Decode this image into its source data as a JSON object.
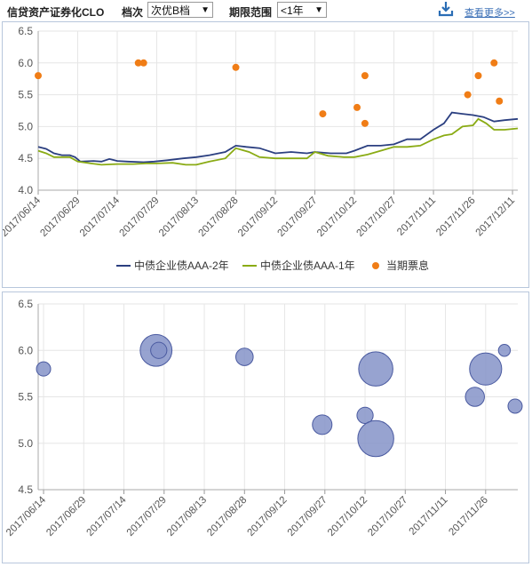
{
  "toolbar": {
    "title": "信贷资产证券化CLO",
    "grade_label": "档次",
    "grade_value": "次优B档",
    "range_label": "期限范围",
    "range_value": "<1年",
    "more_link": "查看更多>>"
  },
  "icons": {
    "download": "download-icon",
    "dropdown": "chevron-down-icon"
  },
  "colors": {
    "aaa2": "#2b3f80",
    "aaa1": "#8aab14",
    "coupon": "#f07d16",
    "bubble": "#8593c8",
    "grid": "#e6e6e6",
    "panel_border": "#b8c7dc"
  },
  "chart_data": [
    {
      "type": "line",
      "ylim": [
        4.0,
        6.5
      ],
      "y_ticks": [
        "4.0",
        "4.5",
        "5.0",
        "5.5",
        "6.0",
        "6.5"
      ],
      "x_ticks": [
        "2017/06/14",
        "2017/06/29",
        "2017/07/14",
        "2017/07/29",
        "2017/08/13",
        "2017/08/28",
        "2017/09/12",
        "2017/09/27",
        "2017/10/12",
        "2017/10/27",
        "2017/11/11",
        "2017/11/26",
        "2017/12/11"
      ],
      "x_range": [
        "2017/06/14",
        "2017/12/13"
      ],
      "legend_position": "bottom",
      "series": [
        {
          "name": "中债企业债AAA-2年",
          "kind": "line",
          "points": [
            [
              "2017/06/14",
              4.68
            ],
            [
              "2017/06/17",
              4.65
            ],
            [
              "2017/06/20",
              4.58
            ],
            [
              "2017/06/23",
              4.55
            ],
            [
              "2017/06/26",
              4.55
            ],
            [
              "2017/06/28",
              4.52
            ],
            [
              "2017/06/30",
              4.45
            ],
            [
              "2017/07/05",
              4.46
            ],
            [
              "2017/07/08",
              4.45
            ],
            [
              "2017/07/11",
              4.49
            ],
            [
              "2017/07/14",
              4.46
            ],
            [
              "2017/07/18",
              4.45
            ],
            [
              "2017/07/24",
              4.44
            ],
            [
              "2017/07/28",
              4.45
            ],
            [
              "2017/08/02",
              4.47
            ],
            [
              "2017/08/08",
              4.5
            ],
            [
              "2017/08/13",
              4.52
            ],
            [
              "2017/08/18",
              4.55
            ],
            [
              "2017/08/24",
              4.6
            ],
            [
              "2017/08/28",
              4.7
            ],
            [
              "2017/09/01",
              4.68
            ],
            [
              "2017/09/06",
              4.66
            ],
            [
              "2017/09/12",
              4.58
            ],
            [
              "2017/09/18",
              4.6
            ],
            [
              "2017/09/24",
              4.58
            ],
            [
              "2017/09/27",
              4.6
            ],
            [
              "2017/10/03",
              4.58
            ],
            [
              "2017/10/09",
              4.58
            ],
            [
              "2017/10/12",
              4.62
            ],
            [
              "2017/10/17",
              4.7
            ],
            [
              "2017/10/22",
              4.7
            ],
            [
              "2017/10/27",
              4.72
            ],
            [
              "2017/11/01",
              4.8
            ],
            [
              "2017/11/06",
              4.8
            ],
            [
              "2017/11/11",
              4.95
            ],
            [
              "2017/11/15",
              5.05
            ],
            [
              "2017/11/18",
              5.22
            ],
            [
              "2017/11/22",
              5.2
            ],
            [
              "2017/11/26",
              5.18
            ],
            [
              "2017/11/30",
              5.15
            ],
            [
              "2017/12/04",
              5.08
            ],
            [
              "2017/12/08",
              5.1
            ],
            [
              "2017/12/13",
              5.12
            ]
          ]
        },
        {
          "name": "中债企业债AAA-1年",
          "kind": "line",
          "points": [
            [
              "2017/06/14",
              4.62
            ],
            [
              "2017/06/17",
              4.58
            ],
            [
              "2017/06/20",
              4.52
            ],
            [
              "2017/06/23",
              4.52
            ],
            [
              "2017/06/26",
              4.52
            ],
            [
              "2017/06/29",
              4.45
            ],
            [
              "2017/07/04",
              4.42
            ],
            [
              "2017/07/08",
              4.4
            ],
            [
              "2017/07/14",
              4.41
            ],
            [
              "2017/07/20",
              4.41
            ],
            [
              "2017/07/25",
              4.42
            ],
            [
              "2017/07/29",
              4.42
            ],
            [
              "2017/08/04",
              4.43
            ],
            [
              "2017/08/09",
              4.4
            ],
            [
              "2017/08/13",
              4.4
            ],
            [
              "2017/08/18",
              4.45
            ],
            [
              "2017/08/24",
              4.5
            ],
            [
              "2017/08/28",
              4.66
            ],
            [
              "2017/09/02",
              4.6
            ],
            [
              "2017/09/06",
              4.52
            ],
            [
              "2017/09/12",
              4.5
            ],
            [
              "2017/09/18",
              4.5
            ],
            [
              "2017/09/24",
              4.5
            ],
            [
              "2017/09/27",
              4.6
            ],
            [
              "2017/10/02",
              4.54
            ],
            [
              "2017/10/08",
              4.52
            ],
            [
              "2017/10/12",
              4.52
            ],
            [
              "2017/10/17",
              4.56
            ],
            [
              "2017/10/22",
              4.62
            ],
            [
              "2017/10/27",
              4.68
            ],
            [
              "2017/11/01",
              4.68
            ],
            [
              "2017/11/06",
              4.7
            ],
            [
              "2017/11/11",
              4.8
            ],
            [
              "2017/11/15",
              4.86
            ],
            [
              "2017/11/18",
              4.88
            ],
            [
              "2017/11/22",
              5.0
            ],
            [
              "2017/11/26",
              5.02
            ],
            [
              "2017/11/28",
              5.12
            ],
            [
              "2017/12/01",
              5.05
            ],
            [
              "2017/12/04",
              4.95
            ],
            [
              "2017/12/08",
              4.95
            ],
            [
              "2017/12/13",
              4.97
            ]
          ]
        },
        {
          "name": "当期票息",
          "kind": "scatter",
          "points": [
            [
              "2017/06/14",
              5.8
            ],
            [
              "2017/07/22",
              6.0
            ],
            [
              "2017/07/24",
              6.0
            ],
            [
              "2017/08/28",
              5.93
            ],
            [
              "2017/09/30",
              5.2
            ],
            [
              "2017/10/13",
              5.3
            ],
            [
              "2017/10/16",
              5.05
            ],
            [
              "2017/10/16",
              5.8
            ],
            [
              "2017/11/24",
              5.5
            ],
            [
              "2017/11/28",
              5.8
            ],
            [
              "2017/12/04",
              6.0
            ],
            [
              "2017/12/06",
              5.4
            ]
          ]
        }
      ]
    },
    {
      "type": "scatter",
      "ylim": [
        4.5,
        6.5
      ],
      "y_ticks": [
        "4.5",
        "5.0",
        "5.5",
        "6.0",
        "6.5"
      ],
      "x_ticks": [
        "2017/06/14",
        "2017/06/29",
        "2017/07/14",
        "2017/07/29",
        "2017/08/13",
        "2017/08/28",
        "2017/09/12",
        "2017/09/27",
        "2017/10/12",
        "2017/10/27",
        "2017/11/11",
        "2017/11/26"
      ],
      "x_range": [
        "2017/06/12",
        "2017/12/08"
      ],
      "bubbles": [
        {
          "date": "2017/06/14",
          "value": 5.8,
          "size": 1.0
        },
        {
          "date": "2017/07/26",
          "value": 6.0,
          "size": 5.0
        },
        {
          "date": "2017/07/27",
          "value": 6.0,
          "size": 1.3
        },
        {
          "date": "2017/08/28",
          "value": 5.93,
          "size": 1.5
        },
        {
          "date": "2017/09/26",
          "value": 5.2,
          "size": 1.9
        },
        {
          "date": "2017/10/12",
          "value": 5.3,
          "size": 1.3
        },
        {
          "date": "2017/10/16",
          "value": 5.05,
          "size": 6.4
        },
        {
          "date": "2017/10/16",
          "value": 5.8,
          "size": 5.8
        },
        {
          "date": "2017/11/22",
          "value": 5.5,
          "size": 1.8
        },
        {
          "date": "2017/11/26",
          "value": 5.8,
          "size": 5.1
        },
        {
          "date": "2017/12/03",
          "value": 6.0,
          "size": 0.7
        },
        {
          "date": "2017/12/07",
          "value": 5.4,
          "size": 1.0
        }
      ]
    }
  ]
}
